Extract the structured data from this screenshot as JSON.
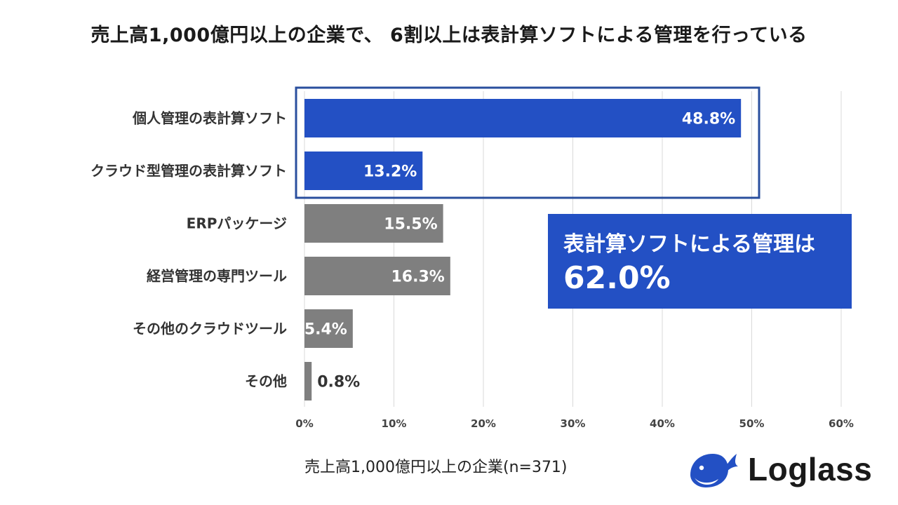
{
  "title": "売上高1,000億円以上の企業で、 6割以上は表計算ソフトによる管理を行っている",
  "chart_data": {
    "type": "bar",
    "orientation": "horizontal",
    "title": "売上高1,000億円以上の企業で、 6割以上は表計算ソフトによる管理を行っている",
    "categories": [
      "個人管理の表計算ソフト",
      "クラウド型管理の表計算ソフト",
      "ERPパッケージ",
      "経営管理の専門ツール",
      "その他のクラウドツール",
      "その他"
    ],
    "values": [
      48.8,
      13.2,
      15.5,
      16.3,
      5.4,
      0.8
    ],
    "value_labels": [
      "48.8%",
      "13.2%",
      "15.5%",
      "16.3%",
      "5.4%",
      "0.8%"
    ],
    "highlighted": [
      true,
      true,
      false,
      false,
      false,
      false
    ],
    "xlim": [
      0,
      60
    ],
    "xticks": [
      0,
      10,
      20,
      30,
      40,
      50,
      60
    ],
    "xtick_labels": [
      "0%",
      "10%",
      "20%",
      "30%",
      "40%",
      "50%",
      "60%"
    ],
    "grid": true,
    "xlabel": "",
    "ylabel": ""
  },
  "callout": {
    "line1": "表計算ソフトによる管理は",
    "line2": "62.0%"
  },
  "footnote": "売上高1,000億円以上の企業(n=371)",
  "logo": {
    "text": "Loglass",
    "icon": "whale-icon"
  },
  "colors": {
    "highlight": "#2350c4",
    "default": "#7f7f7f",
    "box_border": "#2a4f9e",
    "grid": "#d9d9d9"
  }
}
